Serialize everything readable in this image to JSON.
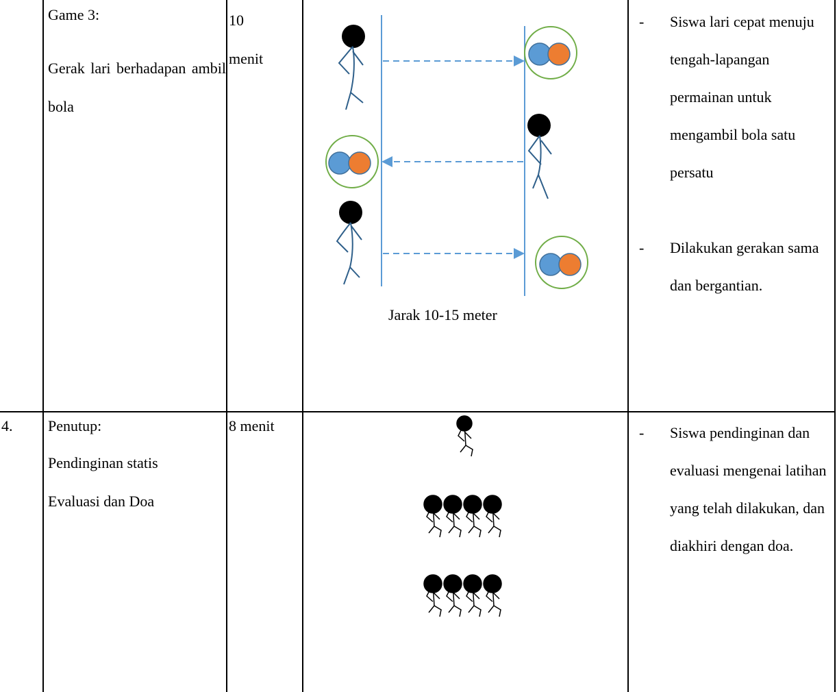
{
  "table": {
    "rows": [
      {
        "number": "",
        "activity": [
          "Game 3:",
          "Gerak lari berhadapan ambil bola"
        ],
        "time": "10 menit",
        "diagram_caption": "Jarak 10-15 meter",
        "notes": [
          "Siswa lari cepat menuju tengah-lapangan permainan untuk mengambil bola satu persatu",
          "Dilakukan gerakan sama dan bergantian."
        ]
      },
      {
        "number": "4.",
        "activity": [
          "Penutup:",
          "Pendinginan statis",
          "Evaluasi dan Doa"
        ],
        "time": "8 menit",
        "notes": [
          "Siswa pendinginan dan evaluasi mengenai latihan yang telah dilakukan, dan diakhiri dengan doa."
        ]
      }
    ]
  }
}
